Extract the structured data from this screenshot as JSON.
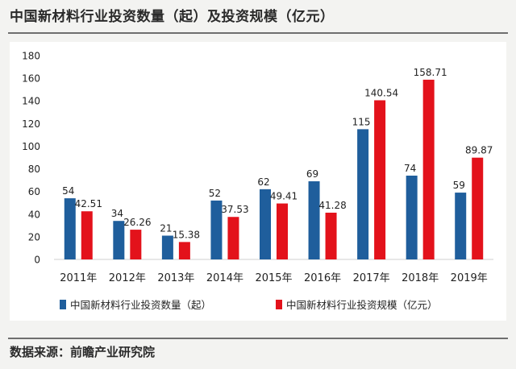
{
  "title": "中国新材料行业投资数量（起）及投资规模（亿元）",
  "source": "数据来源：前瞻产业研究院",
  "colors": {
    "series1": "#1f5e9c",
    "series2": "#e3121b"
  },
  "chart_data": {
    "type": "bar",
    "title": "中国新材料行业投资数量（起）及投资规模（亿元）",
    "xlabel": "",
    "ylabel": "",
    "ylim": [
      0,
      180
    ],
    "yticks": [
      0,
      20,
      40,
      60,
      80,
      100,
      120,
      140,
      160,
      180
    ],
    "grid": false,
    "legend_position": "bottom",
    "categories": [
      "2011年",
      "2012年",
      "2013年",
      "2014年",
      "2015年",
      "2016年",
      "2017年",
      "2018年",
      "2019年"
    ],
    "series": [
      {
        "name": "中国新材料行业投资数量（起）",
        "values": [
          54,
          34,
          21,
          52,
          62,
          69,
          115,
          74,
          59
        ],
        "labels": [
          "54",
          "34",
          "21",
          "52",
          "62",
          "69",
          "115",
          "74",
          "59"
        ]
      },
      {
        "name": "中国新材料行业投资规模（亿元）",
        "values": [
          42.51,
          26.26,
          15.38,
          37.53,
          49.41,
          41.28,
          140.54,
          158.71,
          89.87
        ],
        "labels": [
          "42.51",
          "26.26",
          "15.38",
          "37.53",
          "49.41",
          "41.28",
          "140.54",
          "158.71",
          "89.87"
        ]
      }
    ]
  }
}
